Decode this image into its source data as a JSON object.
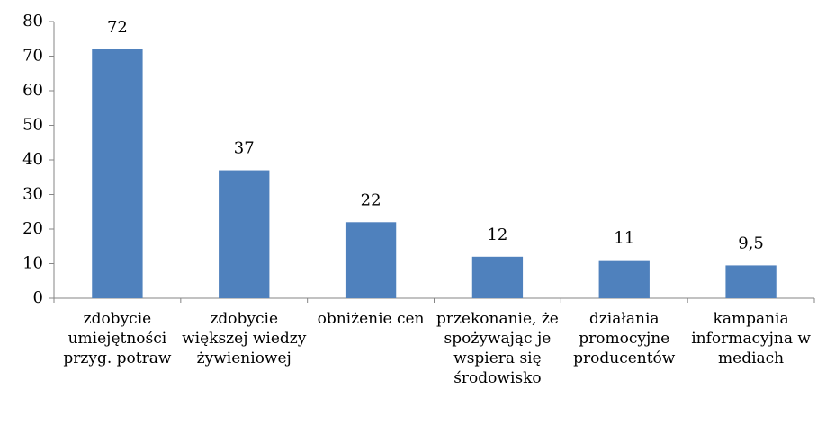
{
  "chart_data": {
    "type": "bar",
    "categories": [
      "zdobycie umiejętności przyg. potraw",
      "zdobycie większej wiedzy żywieniowej",
      "obniżenie cen",
      "przekonanie, że spożywając je wspiera się środowisko",
      "działania promocyjne producentów",
      "kampania informacyjna w mediach"
    ],
    "values": [
      72,
      37,
      22,
      12,
      11,
      9.5
    ],
    "value_labels": [
      "72",
      "37",
      "22",
      "12",
      "11",
      "9,5"
    ],
    "color": "#4f81bd",
    "ylim": [
      0,
      80
    ],
    "yticks": [
      0,
      10,
      20,
      30,
      40,
      50,
      60,
      70,
      80
    ],
    "grid": false
  }
}
